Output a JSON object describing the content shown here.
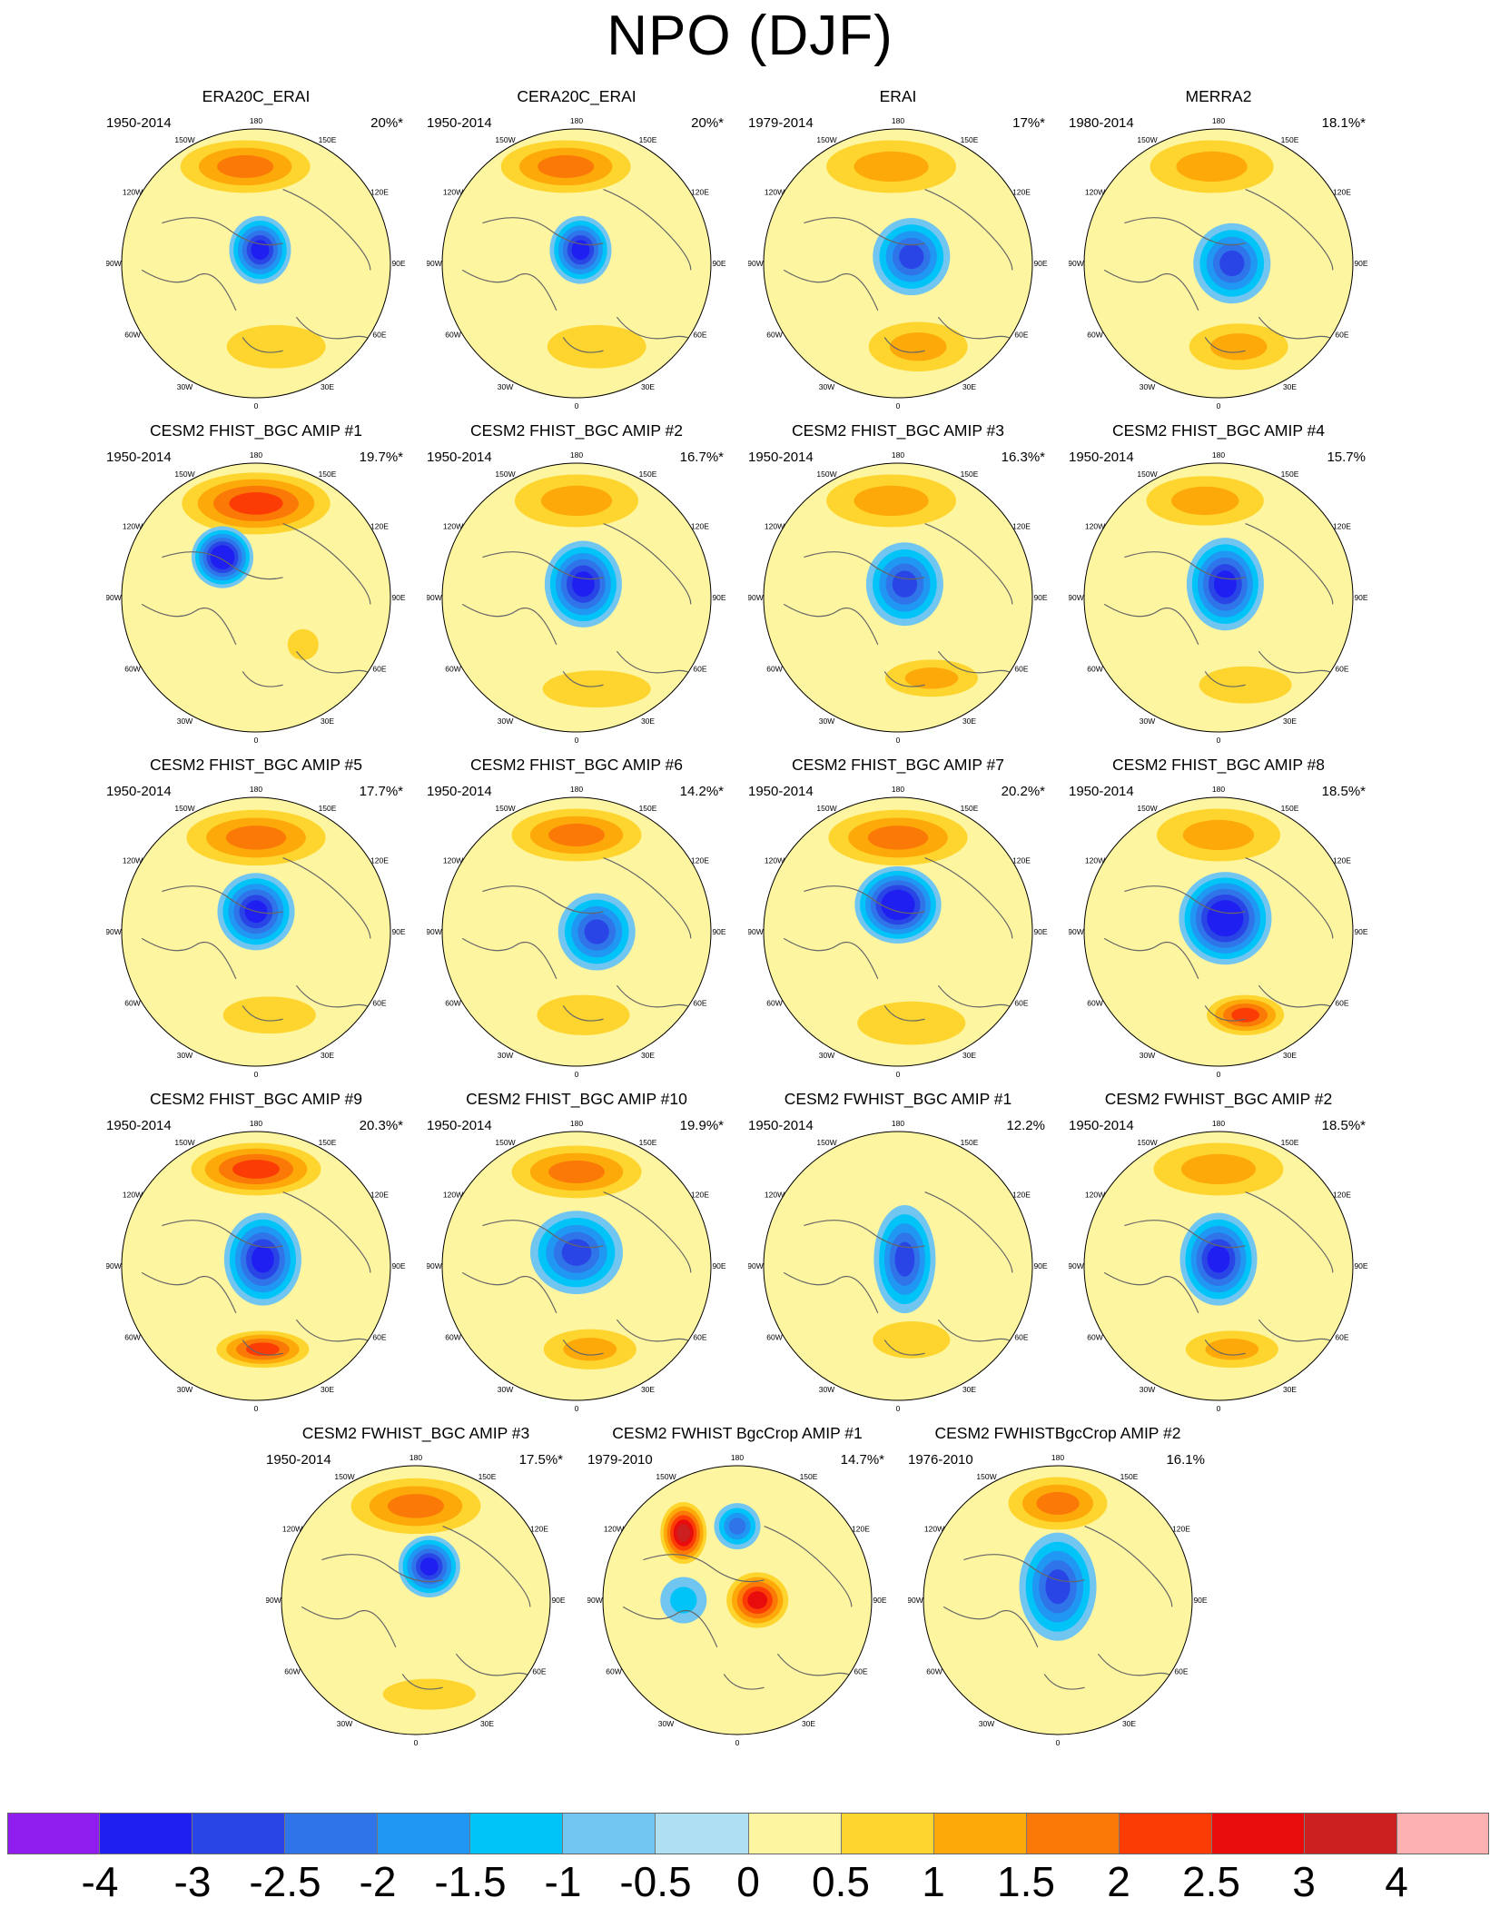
{
  "title": "NPO (DJF)",
  "lon_labels": [
    "180",
    "150E",
    "120E",
    "90E",
    "60E",
    "30E",
    "0",
    "30W",
    "60W",
    "90W",
    "120W",
    "150W"
  ],
  "colorbar": {
    "colors": [
      "#8f1eee",
      "#1f1ff2",
      "#2a45e6",
      "#2f74e9",
      "#1f97f3",
      "#00c4f7",
      "#71c6f1",
      "#aee0f2",
      "#fef5a0",
      "#fdd52e",
      "#fda90a",
      "#fb7a07",
      "#fb3d05",
      "#e80c0c",
      "#cc1f1f",
      "#fdb1b1"
    ],
    "labels": [
      "-4",
      "-3",
      "-2.5",
      "-2",
      "-1.5",
      "-1",
      "-0.5",
      "0",
      "0.5",
      "1",
      "1.5",
      "2",
      "2.5",
      "3",
      "4"
    ]
  },
  "panels": [
    {
      "title": "ERA20C_ERAI",
      "period": "1950-2014",
      "variance": "20%*",
      "lows": [
        [
          0.03,
          -0.1,
          0.2,
          0.22,
          -3
        ]
      ],
      "highs": [
        [
          -0.08,
          -0.72,
          0.42,
          0.17,
          1.5
        ],
        [
          0.15,
          0.62,
          0.32,
          0.14,
          0.8
        ],
        [
          0.55,
          0.05,
          0.1,
          0.12,
          0.3
        ]
      ]
    },
    {
      "title": "CERA20C_ERAI",
      "period": "1950-2014",
      "variance": "20%*",
      "lows": [
        [
          0.03,
          -0.1,
          0.2,
          0.22,
          -3
        ]
      ],
      "highs": [
        [
          -0.08,
          -0.72,
          0.42,
          0.17,
          1.5
        ],
        [
          0.15,
          0.62,
          0.32,
          0.14,
          0.8
        ],
        [
          0.55,
          0.05,
          0.1,
          0.12,
          0.3
        ]
      ]
    },
    {
      "title": "ERAI",
      "period": "1979-2014",
      "variance": "17%*",
      "lows": [
        [
          0.1,
          -0.05,
          0.25,
          0.25,
          -2.5
        ]
      ],
      "highs": [
        [
          -0.05,
          -0.72,
          0.42,
          0.17,
          1.2
        ],
        [
          0.15,
          0.62,
          0.32,
          0.16,
          1.2
        ]
      ]
    },
    {
      "title": "MERRA2",
      "period": "1980-2014",
      "variance": "18.1%*",
      "lows": [
        [
          0.1,
          0.0,
          0.25,
          0.26,
          -2.5
        ]
      ],
      "highs": [
        [
          -0.05,
          -0.72,
          0.4,
          0.17,
          1.2
        ],
        [
          0.15,
          0.62,
          0.32,
          0.15,
          1.2
        ]
      ]
    },
    {
      "title": "CESM2 FHIST_BGC AMIP #1",
      "period": "1950-2014",
      "variance": "19.7%*",
      "lows": [
        [
          -0.25,
          -0.3,
          0.2,
          0.2,
          -3.5
        ]
      ],
      "highs": [
        [
          0.0,
          -0.7,
          0.48,
          0.2,
          2.2
        ],
        [
          0.35,
          0.35,
          0.1,
          0.1,
          0.8
        ]
      ]
    },
    {
      "title": "CESM2 FHIST_BGC AMIP #2",
      "period": "1950-2014",
      "variance": "16.7%*",
      "lows": [
        [
          0.05,
          -0.1,
          0.25,
          0.28,
          -3
        ]
      ],
      "highs": [
        [
          0.0,
          -0.72,
          0.4,
          0.17,
          1.2
        ],
        [
          0.15,
          0.68,
          0.35,
          0.12,
          0.8
        ]
      ]
    },
    {
      "title": "CESM2 FHIST_BGC AMIP #3",
      "period": "1950-2014",
      "variance": "16.3%*",
      "lows": [
        [
          0.05,
          -0.1,
          0.25,
          0.27,
          -2.5
        ]
      ],
      "highs": [
        [
          -0.05,
          -0.72,
          0.42,
          0.17,
          1.2
        ],
        [
          0.25,
          0.6,
          0.3,
          0.12,
          1.2
        ]
      ]
    },
    {
      "title": "CESM2 FHIST_BGC AMIP #4",
      "period": "1950-2014",
      "variance": "15.7%",
      "lows": [
        [
          0.05,
          -0.1,
          0.25,
          0.3,
          -3
        ]
      ],
      "highs": [
        [
          -0.1,
          -0.72,
          0.38,
          0.16,
          1.2
        ],
        [
          0.2,
          0.65,
          0.3,
          0.12,
          0.8
        ]
      ]
    },
    {
      "title": "CESM2 FHIST_BGC AMIP #5",
      "period": "1950-2014",
      "variance": "17.7%*",
      "lows": [
        [
          0.0,
          -0.15,
          0.25,
          0.25,
          -3
        ]
      ],
      "highs": [
        [
          0.0,
          -0.7,
          0.45,
          0.18,
          1.5
        ],
        [
          0.1,
          0.62,
          0.3,
          0.12,
          0.8
        ]
      ]
    },
    {
      "title": "CESM2 FHIST_BGC AMIP #6",
      "period": "1950-2014",
      "variance": "14.2%*",
      "lows": [
        [
          0.15,
          0.0,
          0.25,
          0.25,
          -2.5
        ]
      ],
      "highs": [
        [
          0.0,
          -0.72,
          0.42,
          0.17,
          1.5
        ],
        [
          0.05,
          0.62,
          0.3,
          0.13,
          0.8
        ]
      ]
    },
    {
      "title": "CESM2 FHIST_BGC AMIP #7",
      "period": "1950-2014",
      "variance": "20.2%*",
      "lows": [
        [
          0.0,
          -0.2,
          0.28,
          0.25,
          -3.5
        ]
      ],
      "highs": [
        [
          0.0,
          -0.7,
          0.45,
          0.18,
          1.5
        ],
        [
          0.1,
          0.68,
          0.35,
          0.14,
          0.8
        ]
      ]
    },
    {
      "title": "CESM2 FHIST_BGC AMIP #8",
      "period": "1950-2014",
      "variance": "18.5%*",
      "lows": [
        [
          0.05,
          -0.1,
          0.3,
          0.3,
          -3.5
        ]
      ],
      "highs": [
        [
          0.0,
          -0.72,
          0.4,
          0.17,
          1.2
        ],
        [
          0.2,
          0.62,
          0.25,
          0.13,
          2.2
        ]
      ]
    },
    {
      "title": "CESM2 FHIST_BGC AMIP #9",
      "period": "1950-2014",
      "variance": "20.3%*",
      "lows": [
        [
          0.05,
          -0.05,
          0.25,
          0.3,
          -3
        ]
      ],
      "highs": [
        [
          0.0,
          -0.72,
          0.42,
          0.17,
          2.0
        ],
        [
          0.05,
          0.62,
          0.3,
          0.12,
          2.0
        ]
      ]
    },
    {
      "title": "CESM2 FHIST_BGC AMIP #10",
      "period": "1950-2014",
      "variance": "19.9%*",
      "lows": [
        [
          0.0,
          -0.1,
          0.3,
          0.27,
          -2.5
        ]
      ],
      "highs": [
        [
          0.0,
          -0.7,
          0.42,
          0.17,
          1.5
        ],
        [
          0.1,
          0.62,
          0.3,
          0.13,
          1.2
        ]
      ]
    },
    {
      "title": "CESM2 FWHIST_BGC AMIP #1",
      "period": "1950-2014",
      "variance": "12.2%",
      "lows": [
        [
          0.05,
          -0.05,
          0.2,
          0.35,
          -2.5
        ]
      ],
      "highs": [
        [
          0.1,
          0.55,
          0.25,
          0.12,
          0.8
        ]
      ]
    },
    {
      "title": "CESM2 FWHIST_BGC AMIP #2",
      "period": "1950-2014",
      "variance": "18.5%*",
      "lows": [
        [
          0.0,
          -0.05,
          0.25,
          0.3,
          -3
        ]
      ],
      "highs": [
        [
          0.0,
          -0.72,
          0.42,
          0.17,
          1.2
        ],
        [
          0.1,
          0.62,
          0.3,
          0.12,
          1.2
        ]
      ]
    },
    {
      "title": "CESM2 FWHIST_BGC AMIP #3",
      "period": "1950-2014",
      "variance": "17.5%*",
      "lows": [
        [
          0.1,
          -0.25,
          0.2,
          0.2,
          -3
        ]
      ],
      "highs": [
        [
          0.0,
          -0.7,
          0.42,
          0.18,
          1.8
        ],
        [
          0.1,
          0.7,
          0.3,
          0.1,
          0.8
        ]
      ]
    },
    {
      "title": "CESM2 FWHIST BgcCrop AMIP #1",
      "period": "1979-2010",
      "variance": "14.7%*",
      "lows": [
        [
          0.0,
          -0.55,
          0.15,
          0.15,
          -2.0
        ],
        [
          -0.4,
          0.0,
          0.15,
          0.15,
          -1.0
        ]
      ],
      "highs": [
        [
          -0.4,
          -0.5,
          0.15,
          0.2,
          3.0
        ],
        [
          0.15,
          0.0,
          0.2,
          0.18,
          2.5
        ]
      ]
    },
    {
      "title": "CESM2 FWHISTBgcCrop AMIP #2",
      "period": "1976-2010",
      "variance": "16.1%",
      "lows": [
        [
          0.0,
          -0.1,
          0.25,
          0.35,
          -2.5
        ]
      ],
      "highs": [
        [
          0.0,
          -0.72,
          0.32,
          0.17,
          1.8
        ]
      ]
    }
  ]
}
